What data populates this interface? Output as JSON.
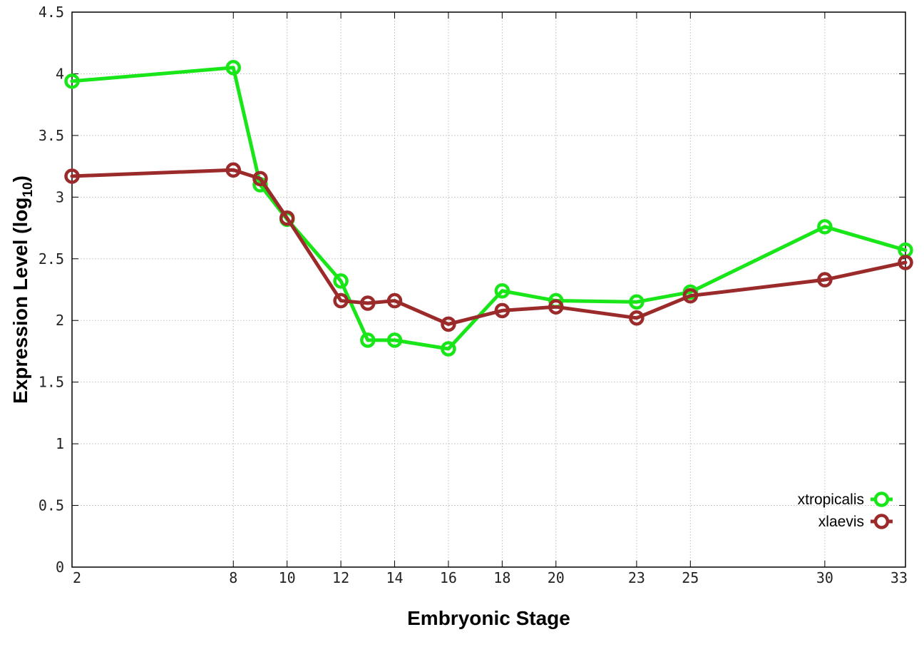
{
  "chart_data": {
    "type": "line",
    "title": "",
    "xlabel": "Embryonic Stage",
    "ylabel": {
      "text": "Expression Level (log",
      "subscript": "10",
      "suffix": ")"
    },
    "xlim": [
      2,
      33
    ],
    "ylim": [
      0,
      4.5
    ],
    "x_ticks": [
      2,
      8,
      10,
      12,
      14,
      16,
      18,
      20,
      23,
      25,
      30,
      33
    ],
    "y_ticks": [
      0,
      0.5,
      1,
      1.5,
      2,
      2.5,
      3,
      3.5,
      4,
      4.5
    ],
    "y_tick_labels": [
      "0",
      "0.5",
      "1",
      "1.5",
      "2",
      "2.5",
      "3",
      "3.5",
      "4",
      "4.5"
    ],
    "grid": true,
    "legend_position": "bottom-right",
    "x": [
      2,
      8,
      9,
      10,
      12,
      13,
      14,
      16,
      18,
      20,
      23,
      25,
      30,
      33
    ],
    "series": [
      {
        "name": "xtropicalis",
        "color": "#19e619",
        "values": [
          3.94,
          4.05,
          3.1,
          2.82,
          2.32,
          1.84,
          1.84,
          1.77,
          2.24,
          2.16,
          2.15,
          2.23,
          2.76,
          2.57
        ]
      },
      {
        "name": "xlaevis",
        "color": "#9b2a2a",
        "values": [
          3.17,
          3.22,
          3.15,
          2.83,
          2.16,
          2.14,
          2.16,
          1.97,
          2.08,
          2.11,
          2.02,
          2.2,
          2.33,
          2.47
        ]
      }
    ]
  }
}
